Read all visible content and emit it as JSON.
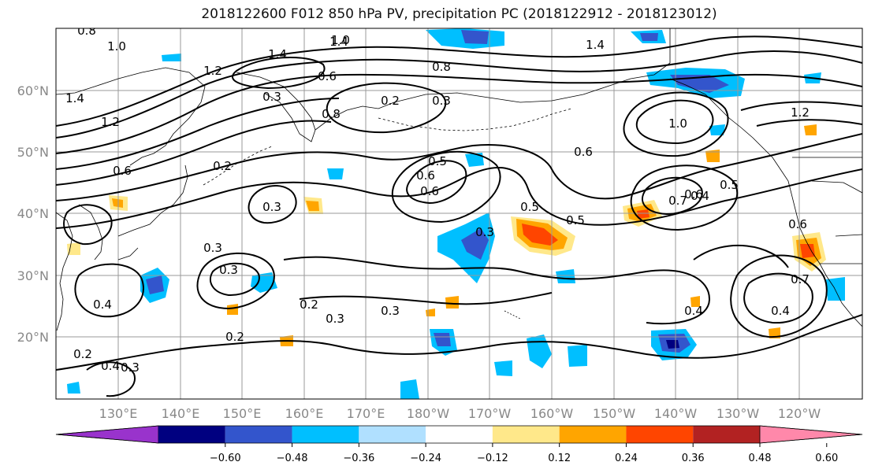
{
  "title": "2018122600 F012 850 hPa PV, precipitation PC (2018122912 - 2018123012)",
  "map": {
    "lon_labels": [
      "130°E",
      "140°E",
      "150°E",
      "160°E",
      "170°E",
      "180°W",
      "170°W",
      "160°W",
      "150°W",
      "140°W",
      "130°W",
      "120°W"
    ],
    "lat_labels": [
      "60°N",
      "50°N",
      "40°N",
      "30°N",
      "20°N"
    ],
    "contour_labels": [
      "0.8",
      "1.0",
      "1.4",
      "1.4",
      "1.0",
      "1.4",
      "1.2",
      "0.8",
      "0.6",
      "0.3",
      "0.2",
      "0.3",
      "0.6",
      "0.5",
      "0.6",
      "0.5",
      "0.5",
      "0.6",
      "0.5",
      "0.4",
      "0.8",
      "1.0",
      "1.2",
      "1.4",
      "1.2",
      "0.6",
      "0.2",
      "0.3",
      "0.3",
      "0.3",
      "0.4",
      "0.2",
      "0.3",
      "0.3",
      "0.2",
      "0.4",
      "0.7",
      "0.4",
      "0.3",
      "0.4",
      "0.3",
      "0.2",
      "0.6",
      "0.7",
      "0.6"
    ]
  },
  "colorbar": {
    "colors": [
      "#9933cc",
      "#000080",
      "#3355cc",
      "#00bfff",
      "#b0e0ff",
      "#ffffff",
      "#ffe88a",
      "#ffa500",
      "#ff4500",
      "#b22222",
      "#ff88aa"
    ],
    "tick_labels": [
      "−0.60",
      "−0.48",
      "−0.36",
      "−0.24",
      "−0.12",
      "0.12",
      "0.24",
      "0.36",
      "0.48",
      "0.60"
    ]
  }
}
